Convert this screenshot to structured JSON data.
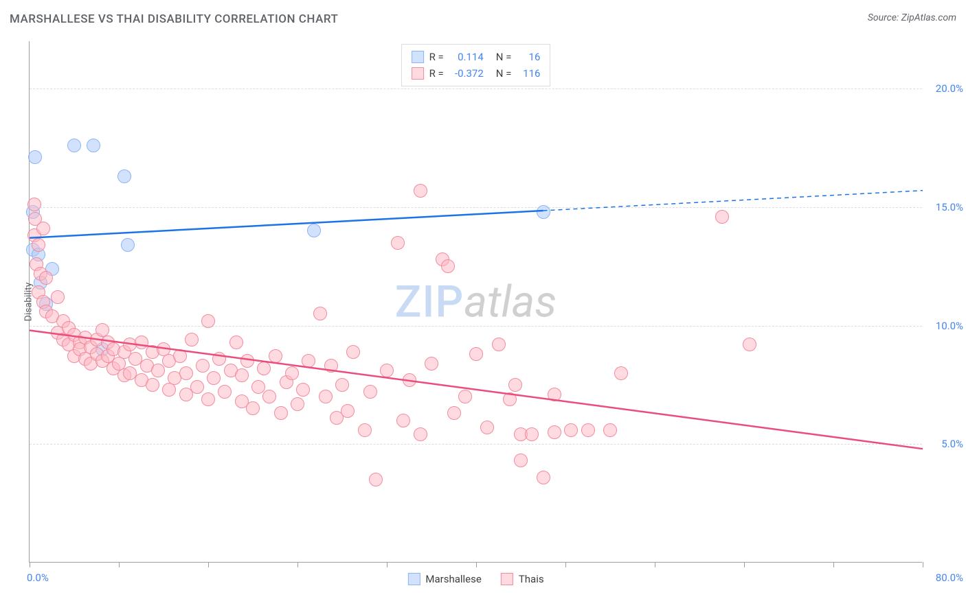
{
  "header": {
    "title": "MARSHALLESE VS THAI DISABILITY CORRELATION CHART",
    "source": "Source: ZipAtlas.com"
  },
  "watermark": {
    "part1": "ZIP",
    "part2": "atlas"
  },
  "chart": {
    "type": "scatter",
    "xlim": [
      0,
      80
    ],
    "ylim": [
      0,
      22
    ],
    "yticks": [
      5,
      10,
      15,
      20
    ],
    "ytick_labels": [
      "5.0%",
      "10.0%",
      "15.0%",
      "20.0%"
    ],
    "xtick_positions": [
      0,
      8,
      16,
      24,
      32,
      40,
      48,
      56,
      64,
      72,
      80
    ],
    "xaxis_left_label": "0.0%",
    "xaxis_right_label": "80.0%",
    "yaxis_title": "Disability",
    "background_color": "#ffffff",
    "grid_color": "#dadce0",
    "axis_color": "#9aa0a6",
    "value_text_color": "#4285f4",
    "series": [
      {
        "name": "Marshallese",
        "fill": "rgba(174, 203, 250, 0.55)",
        "stroke": "#8ab4f8",
        "line_color": "#1a73e8",
        "r": 0.114,
        "n": 16,
        "marker_r": 10,
        "trend": {
          "y_at_x0": 13.7,
          "y_at_x80": 15.7,
          "solid_until_x": 46,
          "dash_after": true
        },
        "points": [
          [
            0.3,
            14.8
          ],
          [
            0.3,
            13.2
          ],
          [
            0.5,
            17.1
          ],
          [
            0.8,
            13.0
          ],
          [
            1.0,
            11.8
          ],
          [
            1.5,
            10.9
          ],
          [
            2.0,
            12.4
          ],
          [
            4.0,
            17.6
          ],
          [
            5.7,
            17.6
          ],
          [
            6.5,
            9.0
          ],
          [
            8.5,
            16.3
          ],
          [
            8.8,
            13.4
          ],
          [
            25.5,
            14.0
          ],
          [
            46.0,
            14.8
          ]
        ]
      },
      {
        "name": "Thais",
        "fill": "rgba(255, 182, 193, 0.5)",
        "stroke": "#f28b9b",
        "line_color": "#ea4c7c",
        "r": -0.372,
        "n": 116,
        "marker_r": 10,
        "trend": {
          "y_at_x0": 9.8,
          "y_at_x80": 4.8,
          "solid_until_x": 80,
          "dash_after": false
        },
        "points": [
          [
            0.4,
            15.1
          ],
          [
            0.4,
            13.8
          ],
          [
            0.5,
            14.5
          ],
          [
            0.6,
            12.6
          ],
          [
            0.8,
            13.4
          ],
          [
            0.8,
            11.4
          ],
          [
            1.0,
            12.2
          ],
          [
            1.2,
            14.1
          ],
          [
            1.2,
            11.0
          ],
          [
            1.5,
            12.0
          ],
          [
            1.5,
            10.6
          ],
          [
            2.0,
            10.4
          ],
          [
            2.5,
            11.2
          ],
          [
            2.5,
            9.7
          ],
          [
            3.0,
            10.2
          ],
          [
            3.0,
            9.4
          ],
          [
            3.5,
            9.9
          ],
          [
            3.5,
            9.2
          ],
          [
            4.0,
            9.6
          ],
          [
            4.0,
            8.7
          ],
          [
            4.5,
            9.3
          ],
          [
            4.5,
            9.0
          ],
          [
            5.0,
            9.5
          ],
          [
            5.0,
            8.6
          ],
          [
            5.5,
            9.1
          ],
          [
            5.5,
            8.4
          ],
          [
            6.0,
            8.8
          ],
          [
            6.0,
            9.4
          ],
          [
            6.5,
            9.8
          ],
          [
            6.5,
            8.5
          ],
          [
            7.0,
            8.7
          ],
          [
            7.0,
            9.3
          ],
          [
            7.5,
            8.2
          ],
          [
            7.5,
            9.0
          ],
          [
            8.0,
            8.4
          ],
          [
            8.5,
            8.9
          ],
          [
            8.5,
            7.9
          ],
          [
            9.0,
            9.2
          ],
          [
            9.0,
            8.0
          ],
          [
            9.5,
            8.6
          ],
          [
            10.0,
            9.3
          ],
          [
            10.0,
            7.7
          ],
          [
            10.5,
            8.3
          ],
          [
            11.0,
            8.9
          ],
          [
            11.0,
            7.5
          ],
          [
            11.5,
            8.1
          ],
          [
            12.0,
            9.0
          ],
          [
            12.5,
            7.3
          ],
          [
            12.5,
            8.5
          ],
          [
            13.0,
            7.8
          ],
          [
            13.5,
            8.7
          ],
          [
            14.0,
            7.1
          ],
          [
            14.0,
            8.0
          ],
          [
            14.5,
            9.4
          ],
          [
            15.0,
            7.4
          ],
          [
            15.5,
            8.3
          ],
          [
            16.0,
            6.9
          ],
          [
            16.0,
            10.2
          ],
          [
            16.5,
            7.8
          ],
          [
            17.0,
            8.6
          ],
          [
            17.5,
            7.2
          ],
          [
            18.0,
            8.1
          ],
          [
            18.5,
            9.3
          ],
          [
            19.0,
            6.8
          ],
          [
            19.0,
            7.9
          ],
          [
            19.5,
            8.5
          ],
          [
            20.0,
            6.5
          ],
          [
            20.5,
            7.4
          ],
          [
            21.0,
            8.2
          ],
          [
            21.5,
            7.0
          ],
          [
            22.0,
            8.7
          ],
          [
            22.5,
            6.3
          ],
          [
            23.0,
            7.6
          ],
          [
            23.5,
            8.0
          ],
          [
            24.0,
            6.7
          ],
          [
            24.5,
            7.3
          ],
          [
            25.0,
            8.5
          ],
          [
            26.0,
            10.5
          ],
          [
            26.5,
            7.0
          ],
          [
            27.0,
            8.3
          ],
          [
            27.5,
            6.1
          ],
          [
            28.0,
            7.5
          ],
          [
            28.5,
            6.4
          ],
          [
            29.0,
            8.9
          ],
          [
            30.0,
            5.6
          ],
          [
            30.5,
            7.2
          ],
          [
            31.0,
            3.5
          ],
          [
            32.0,
            8.1
          ],
          [
            33.0,
            13.5
          ],
          [
            33.5,
            6.0
          ],
          [
            34.0,
            7.7
          ],
          [
            35.0,
            5.4
          ],
          [
            35.0,
            15.7
          ],
          [
            36.0,
            8.4
          ],
          [
            37.0,
            12.8
          ],
          [
            37.5,
            12.5
          ],
          [
            38.0,
            6.3
          ],
          [
            39.0,
            7.0
          ],
          [
            40.0,
            8.8
          ],
          [
            41.0,
            5.7
          ],
          [
            42.0,
            9.2
          ],
          [
            43.0,
            6.9
          ],
          [
            43.5,
            7.5
          ],
          [
            44.0,
            5.4
          ],
          [
            44.0,
            4.3
          ],
          [
            45.0,
            5.4
          ],
          [
            46.0,
            3.6
          ],
          [
            47.0,
            7.1
          ],
          [
            47.0,
            5.5
          ],
          [
            48.5,
            5.6
          ],
          [
            50.0,
            5.6
          ],
          [
            52.0,
            5.6
          ],
          [
            53.0,
            8.0
          ],
          [
            62.0,
            14.6
          ],
          [
            64.5,
            9.2
          ]
        ]
      }
    ]
  },
  "legend_box": {
    "r_label": "R =",
    "n_label": "N ="
  },
  "bottom_legend": {
    "items": [
      "Marshallese",
      "Thais"
    ]
  }
}
